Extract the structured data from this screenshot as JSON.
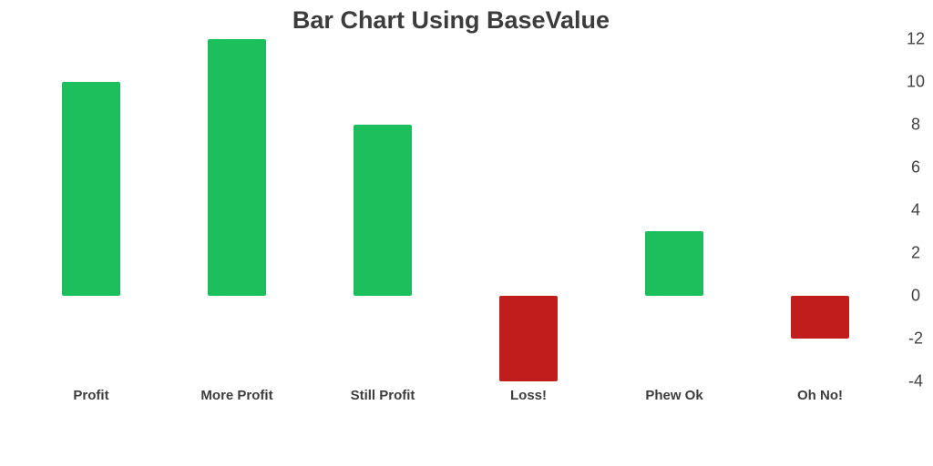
{
  "chart_data": {
    "type": "bar",
    "title": "Bar Chart Using BaseValue",
    "categories": [
      "Profit",
      "More Profit",
      "Still Profit",
      "Loss!",
      "Phew Ok",
      "Oh No!"
    ],
    "values": [
      10,
      12,
      8,
      -4,
      3,
      -2
    ],
    "base_value": 0,
    "positive_color": "#1dbe5c",
    "negative_color": "#c11d1d",
    "y_ticks": [
      12,
      10,
      8,
      6,
      4,
      2,
      0,
      -2,
      -4
    ],
    "ylim": [
      -4,
      12
    ],
    "y_axis_position": "right",
    "grid": false,
    "legend": false,
    "xlabel": "",
    "ylabel": ""
  },
  "colors": {
    "background": "#ffffff",
    "title_text": "#3c3c3c",
    "x_label_text": "#3d3d3d",
    "y_tick_text": "#424242"
  }
}
